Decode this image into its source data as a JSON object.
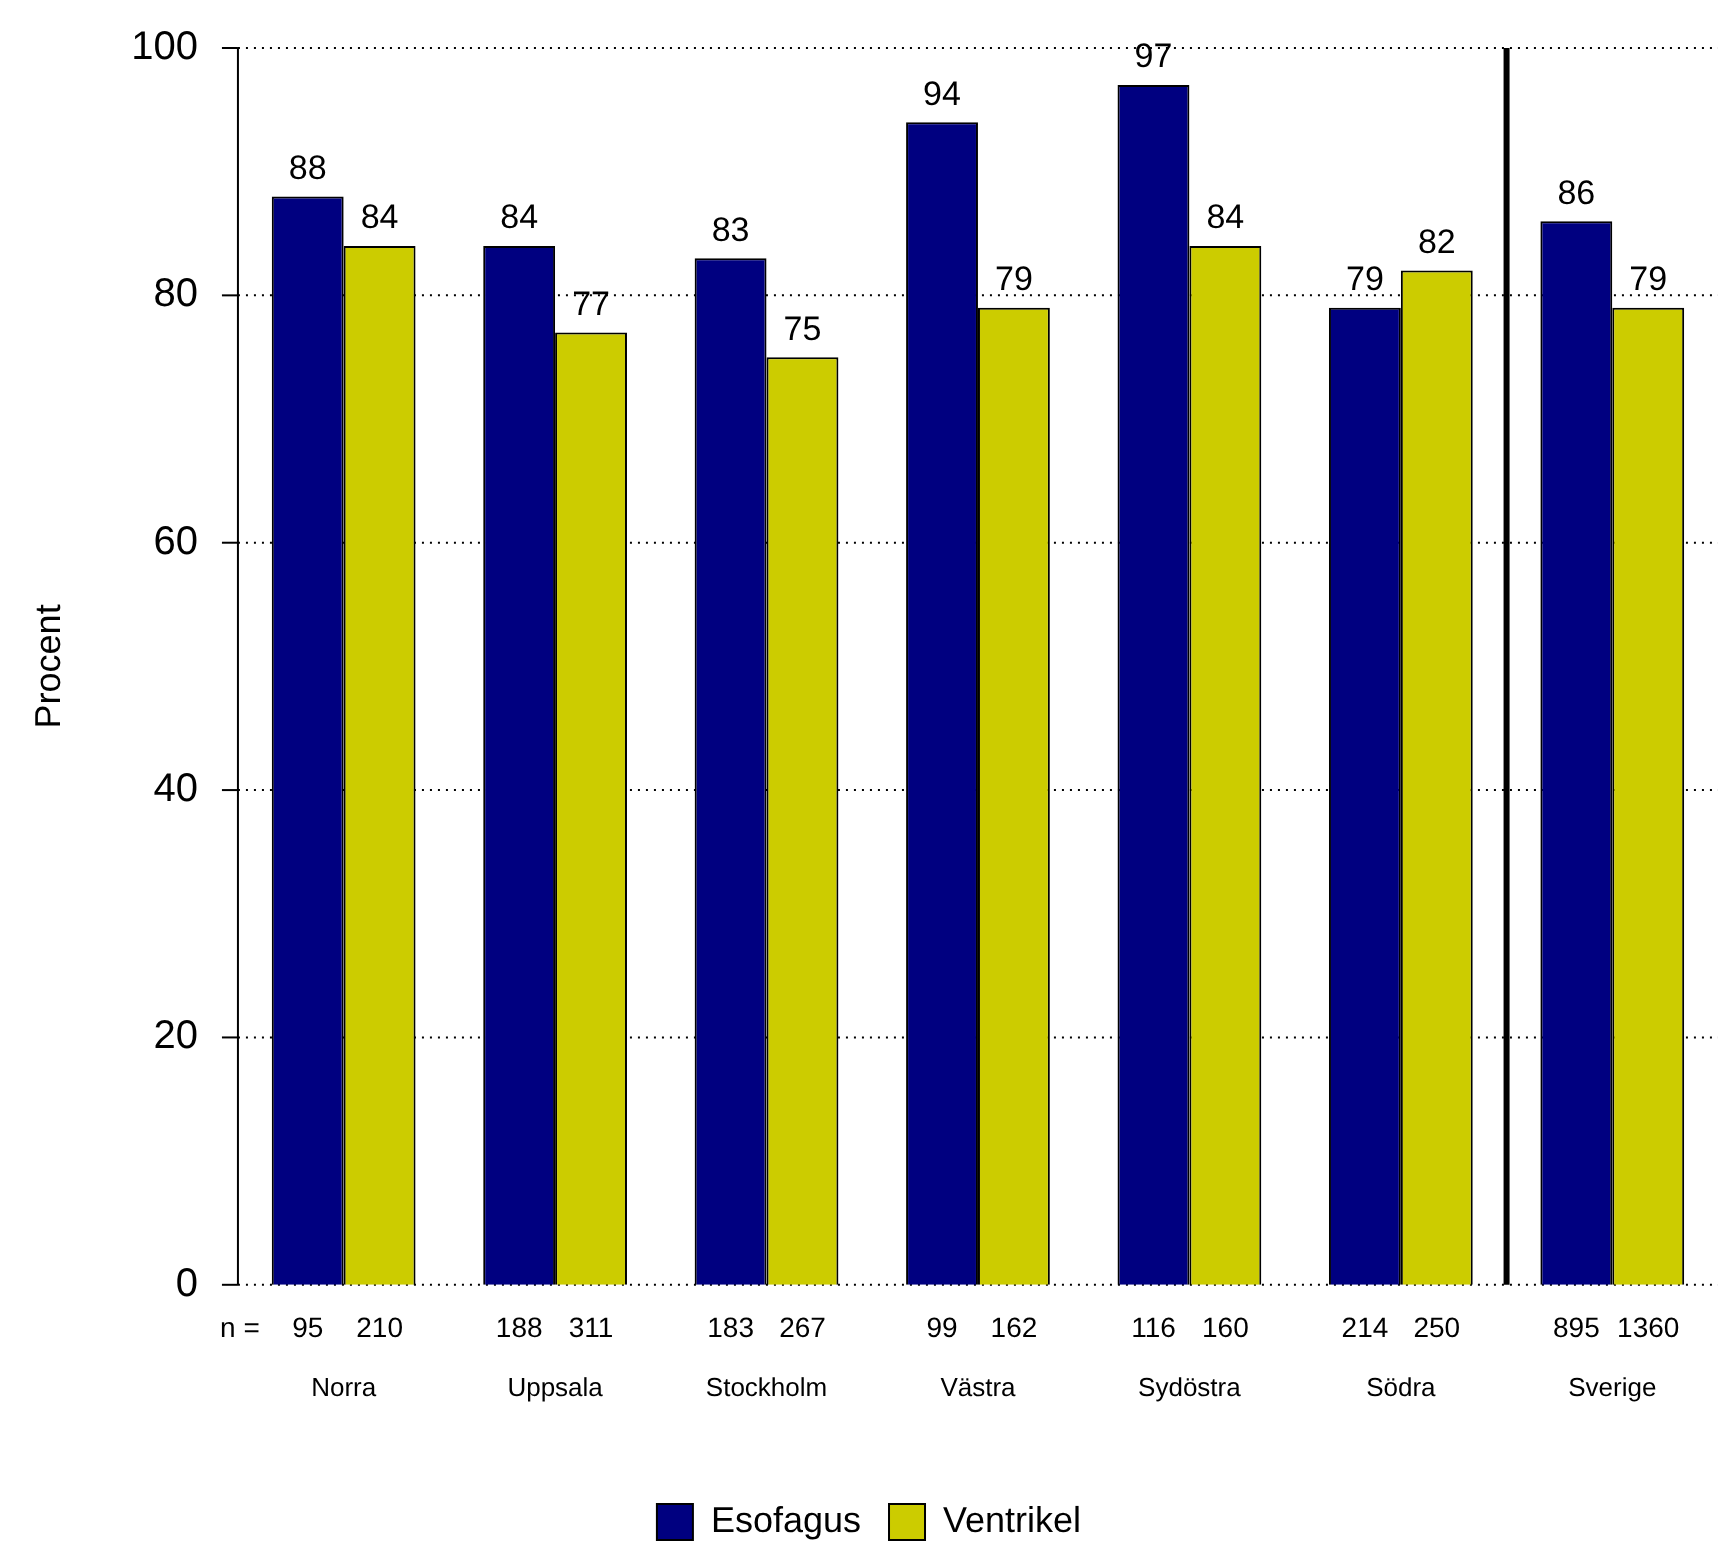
{
  "chart_data": {
    "type": "bar",
    "ylabel": "Procent",
    "categories": [
      "Norra",
      "Uppsala",
      "Stockholm",
      "Västra",
      "Sydöstra",
      "Södra",
      "Sverige"
    ],
    "series": [
      {
        "name": "Esofagus",
        "color": "#000080",
        "values": [
          88,
          84,
          83,
          94,
          97,
          79,
          86
        ]
      },
      {
        "name": "Ventrikel",
        "color": "#cccc00",
        "values": [
          84,
          77,
          75,
          79,
          84,
          82,
          79
        ]
      }
    ],
    "ylim": [
      0,
      100
    ],
    "yticks": [
      0,
      20,
      40,
      60,
      80,
      100
    ],
    "grid": "y",
    "line_style": "dotted",
    "legend": "bottom",
    "data_labels": true,
    "ref_lines": [
      {
        "axis": "x",
        "value": "Sverige"
      }
    ],
    "annotations": [
      "n =",
      "95",
      "210",
      "188",
      "311",
      "183",
      "267",
      "99",
      "162",
      "116",
      "160",
      "214",
      "250",
      "895",
      "1360"
    ]
  }
}
